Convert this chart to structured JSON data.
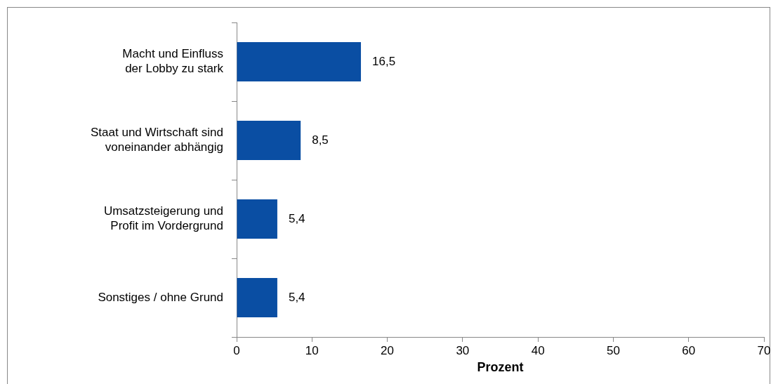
{
  "chart_data": {
    "type": "bar",
    "orientation": "horizontal",
    "xlabel": "Prozent",
    "categories": [
      "Macht und Einfluss der Lobby zu stark",
      "Staat und Wirtschaft sind voneinander abhängig",
      "Umsatzsteigerung und Profit im Vordergrund",
      "Sonstiges / ohne Grund"
    ],
    "values": [
      16.5,
      8.5,
      5.4,
      5.4
    ],
    "value_labels": [
      "16,5",
      "8,5",
      "5,4",
      "5,4"
    ],
    "color": "#0a4ea3",
    "xlim": [
      0,
      70
    ],
    "xticks": [
      0,
      10,
      20,
      30,
      40,
      50,
      60,
      70
    ],
    "grid": false,
    "legend": false
  }
}
